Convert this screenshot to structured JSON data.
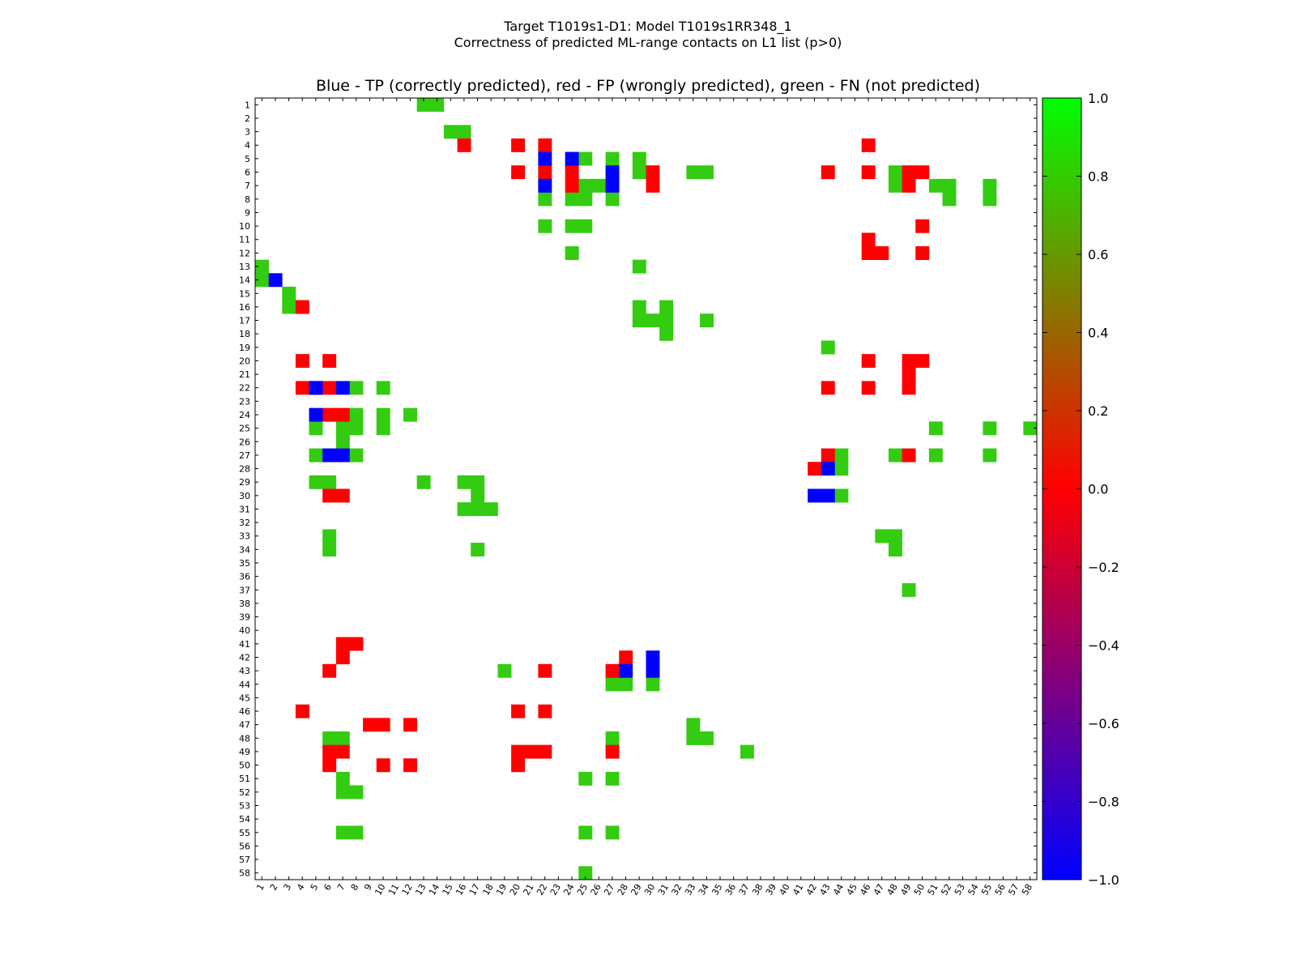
{
  "chart_data": {
    "type": "heatmap",
    "suptitle": [
      "Target T1019s1-D1: Model T1019s1RR348_1",
      "Correctness of predicted ML-range contacts on L1 list (p>0)"
    ],
    "title": "Blue - TP (correctly predicted), red - FP (wrongly predicted), green - FN (not predicted)",
    "xlim": [
      1,
      58
    ],
    "ylim": [
      1,
      58
    ],
    "y_inverted": true,
    "colors": {
      "tp": "#0000ff",
      "fp": "#ff0000",
      "fn": "#33cc11"
    },
    "legend": "none",
    "colorbar": {
      "range": [
        -1.0,
        1.0
      ],
      "ticks": [
        "1.0",
        "0.8",
        "0.6",
        "0.4",
        "0.2",
        "0.0",
        "−0.2",
        "−0.4",
        "−0.6",
        "−0.8",
        "−1.0"
      ],
      "stops": [
        "#0000ff",
        "#ff0000",
        "#00ff00"
      ]
    },
    "cells": {
      "tp": [
        [
          14,
          2
        ],
        [
          22,
          5
        ],
        [
          24,
          5
        ],
        [
          5,
          22
        ],
        [
          7,
          22
        ],
        [
          5,
          24
        ],
        [
          7,
          27
        ],
        [
          6,
          27
        ],
        [
          22,
          5
        ],
        [
          22,
          7
        ],
        [
          27,
          6
        ],
        [
          27,
          7
        ],
        [
          28,
          43
        ],
        [
          30,
          42
        ],
        [
          30,
          43
        ],
        [
          42,
          30
        ],
        [
          43,
          30
        ],
        [
          43,
          28
        ]
      ],
      "fp": [
        [
          4,
          16
        ],
        [
          4,
          20
        ],
        [
          4,
          22
        ],
        [
          6,
          20
        ],
        [
          6,
          22
        ],
        [
          6,
          24
        ],
        [
          7,
          24
        ],
        [
          7,
          30
        ],
        [
          6,
          30
        ],
        [
          4,
          46
        ],
        [
          6,
          43
        ],
        [
          6,
          46
        ],
        [
          6,
          49
        ],
        [
          6,
          50
        ],
        [
          7,
          49
        ],
        [
          16,
          4
        ],
        [
          20,
          4
        ],
        [
          20,
          6
        ],
        [
          22,
          4
        ],
        [
          22,
          6
        ],
        [
          24,
          6
        ],
        [
          24,
          7
        ],
        [
          30,
          6
        ],
        [
          30,
          7
        ],
        [
          20,
          46
        ],
        [
          20,
          49
        ],
        [
          20,
          50
        ],
        [
          21,
          49
        ],
        [
          22,
          43
        ],
        [
          22,
          46
        ],
        [
          22,
          49
        ],
        [
          27,
          43
        ],
        [
          27,
          49
        ],
        [
          28,
          42
        ],
        [
          12,
          46
        ],
        [
          12,
          47
        ],
        [
          12,
          50
        ],
        [
          10,
          50
        ],
        [
          11,
          46
        ],
        [
          41,
          7
        ],
        [
          41,
          8
        ],
        [
          42,
          7
        ],
        [
          43,
          6
        ],
        [
          43,
          22
        ],
        [
          43,
          27
        ],
        [
          42,
          28
        ],
        [
          46,
          4
        ],
        [
          46,
          20
        ],
        [
          46,
          22
        ],
        [
          49,
          6
        ],
        [
          49,
          7
        ],
        [
          49,
          20
        ],
        [
          49,
          21
        ],
        [
          49,
          22
        ],
        [
          49,
          27
        ],
        [
          50,
          6
        ],
        [
          50,
          10
        ],
        [
          50,
          12
        ],
        [
          50,
          20
        ],
        [
          47,
          12
        ],
        [
          47,
          9
        ],
        [
          47,
          10
        ]
      ],
      "fn": [
        [
          1,
          13
        ],
        [
          1,
          14
        ],
        [
          3,
          15
        ],
        [
          3,
          16
        ],
        [
          5,
          25
        ],
        [
          5,
          27
        ],
        [
          5,
          29
        ],
        [
          6,
          29
        ],
        [
          6,
          33
        ],
        [
          6,
          34
        ],
        [
          7,
          25
        ],
        [
          7,
          26
        ],
        [
          8,
          22
        ],
        [
          8,
          24
        ],
        [
          8,
          25
        ],
        [
          8,
          27
        ],
        [
          10,
          22
        ],
        [
          10,
          24
        ],
        [
          10,
          25
        ],
        [
          12,
          24
        ],
        [
          13,
          1
        ],
        [
          13,
          29
        ],
        [
          14,
          1
        ],
        [
          15,
          3
        ],
        [
          16,
          3
        ],
        [
          16,
          29
        ],
        [
          16,
          31
        ],
        [
          17,
          29
        ],
        [
          17,
          30
        ],
        [
          17,
          31
        ],
        [
          17,
          34
        ],
        [
          18,
          31
        ],
        [
          19,
          43
        ],
        [
          22,
          8
        ],
        [
          22,
          10
        ],
        [
          24,
          8
        ],
        [
          24,
          10
        ],
        [
          24,
          12
        ],
        [
          25,
          5
        ],
        [
          25,
          7
        ],
        [
          25,
          8
        ],
        [
          25,
          10
        ],
        [
          26,
          7
        ],
        [
          27,
          5
        ],
        [
          27,
          8
        ],
        [
          27,
          44
        ],
        [
          27,
          48
        ],
        [
          27,
          51
        ],
        [
          27,
          55
        ],
        [
          28,
          44
        ],
        [
          29,
          5
        ],
        [
          29,
          6
        ],
        [
          29,
          13
        ],
        [
          29,
          16
        ],
        [
          29,
          17
        ],
        [
          30,
          17
        ],
        [
          30,
          44
        ],
        [
          31,
          16
        ],
        [
          31,
          17
        ],
        [
          31,
          18
        ],
        [
          33,
          6
        ],
        [
          33,
          47
        ],
        [
          33,
          48
        ],
        [
          34,
          6
        ],
        [
          34,
          17
        ],
        [
          34,
          48
        ],
        [
          37,
          49
        ],
        [
          6,
          48
        ],
        [
          7,
          48
        ],
        [
          7,
          51
        ],
        [
          7,
          52
        ],
        [
          7,
          55
        ],
        [
          8,
          52
        ],
        [
          8,
          55
        ],
        [
          25,
          51
        ],
        [
          25,
          55
        ],
        [
          25,
          58
        ],
        [
          43,
          19
        ],
        [
          44,
          27
        ],
        [
          44,
          28
        ],
        [
          44,
          30
        ],
        [
          47,
          33
        ],
        [
          48,
          6
        ],
        [
          48,
          7
        ],
        [
          48,
          27
        ],
        [
          48,
          33
        ],
        [
          48,
          34
        ],
        [
          49,
          37
        ],
        [
          51,
          7
        ],
        [
          51,
          25
        ],
        [
          51,
          27
        ],
        [
          52,
          7
        ],
        [
          52,
          8
        ],
        [
          55,
          7
        ],
        [
          55,
          8
        ],
        [
          55,
          25
        ],
        [
          55,
          27
        ],
        [
          58,
          25
        ]
      ]
    }
  }
}
